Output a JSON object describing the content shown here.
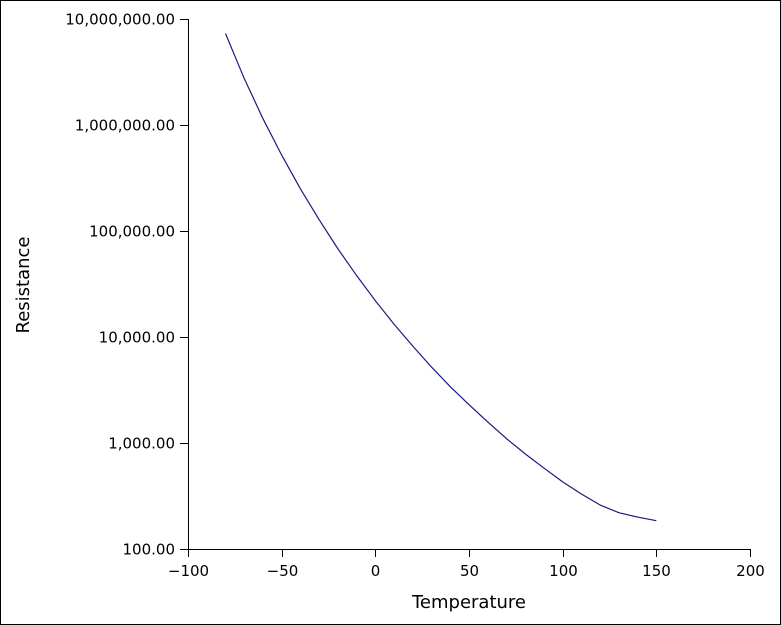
{
  "chart_data": {
    "type": "line",
    "title": "",
    "xlabel": "Temperature",
    "ylabel": "Resistance",
    "xlim": [
      -100,
      200
    ],
    "ylim": [
      100,
      10000000
    ],
    "yscale": "log",
    "grid": false,
    "x_ticks": [
      -100,
      -50,
      0,
      50,
      100,
      150,
      200
    ],
    "x_tick_labels": [
      "−100",
      "−50",
      "0",
      "50",
      "100",
      "150",
      "200"
    ],
    "y_ticks": [
      100,
      1000,
      10000,
      100000,
      1000000,
      10000000
    ],
    "y_tick_labels": [
      "100.00",
      "1,000.00",
      "10,000.00",
      "100,000.00",
      "1,000,000.00",
      "10,000,000.00"
    ],
    "series": [
      {
        "color": "#1a1a80",
        "x": [
          -80,
          -70,
          -60,
          -50,
          -40,
          -30,
          -20,
          -10,
          0,
          10,
          20,
          30,
          40,
          50,
          60,
          70,
          80,
          90,
          100,
          110,
          120,
          130,
          140,
          150
        ],
        "y": [
          7300000,
          2750000,
          1150000,
          520000,
          250000,
          128000,
          68000,
          38000,
          22000,
          13200,
          8200,
          5200,
          3400,
          2300,
          1580,
          1100,
          790,
          580,
          430,
          330,
          260,
          220,
          200,
          185
        ]
      }
    ]
  }
}
